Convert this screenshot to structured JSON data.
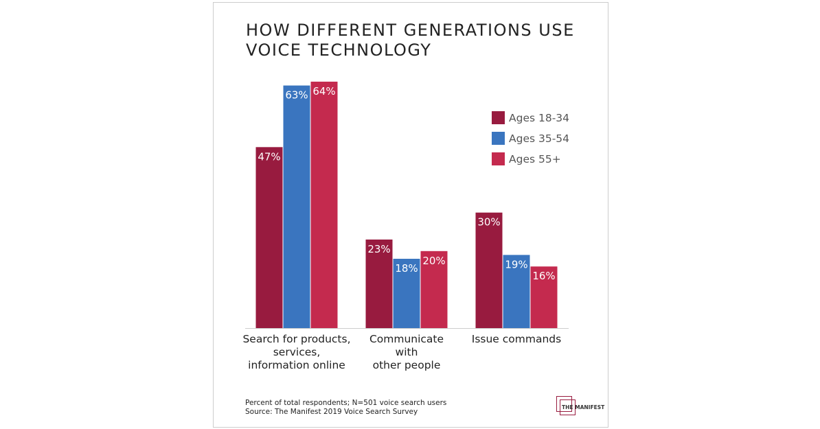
{
  "chart_data": {
    "type": "bar",
    "title": "HOW DIFFERENT GENERATIONS USE\nVOICE TECHNOLOGY",
    "categories": [
      "Search for products,\nservices,\ninformation online",
      "Communicate\nwith\nother people",
      "Issue commands"
    ],
    "series": [
      {
        "name": "Ages 18-34",
        "color": "#981b3f",
        "values": [
          47,
          23,
          30
        ],
        "value_labels": [
          "47%",
          "23%",
          "30%"
        ]
      },
      {
        "name": "Ages 35-54",
        "color": "#3a75bf",
        "values": [
          63,
          18,
          19
        ],
        "value_labels": [
          "63%",
          "18%",
          "19%"
        ]
      },
      {
        "name": "Ages 55+",
        "color": "#c42a4e",
        "values": [
          64,
          20,
          16
        ],
        "value_labels": [
          "64%",
          "20%",
          "16%"
        ]
      }
    ],
    "note": "Percent of total respondents; N=501 voice search users",
    "source": "Source: The Manifest 2019 Voice Search Survey",
    "logo": "THE MANIFEST"
  }
}
